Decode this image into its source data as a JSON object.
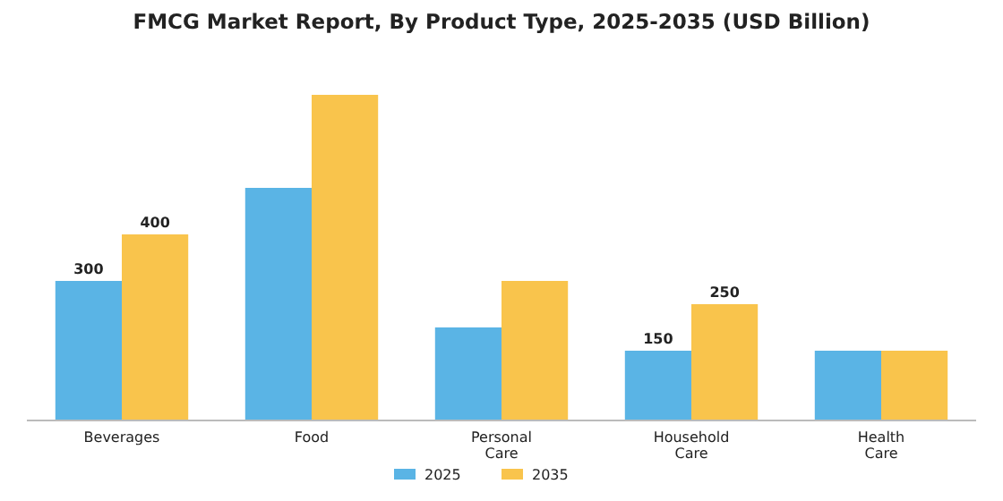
{
  "chart_data": {
    "type": "bar",
    "title": "FMCG Market Report, By Product Type, 2025-2035 (USD Billion)",
    "categories": [
      "Beverages",
      "Food",
      "Personal Care",
      "Household Care",
      "Health Care"
    ],
    "series": [
      {
        "name": "2025",
        "color": "#5ab4e5",
        "values": [
          300,
          500,
          200,
          150,
          150
        ],
        "value_labels": [
          "300",
          null,
          null,
          "150",
          null
        ]
      },
      {
        "name": "2035",
        "color": "#f9c44c",
        "values": [
          400,
          700,
          300,
          250,
          150
        ],
        "value_labels": [
          "400",
          null,
          null,
          "250",
          null
        ]
      }
    ],
    "ylim": [
      0,
      700
    ],
    "legend": "bottom",
    "grid": false
  }
}
